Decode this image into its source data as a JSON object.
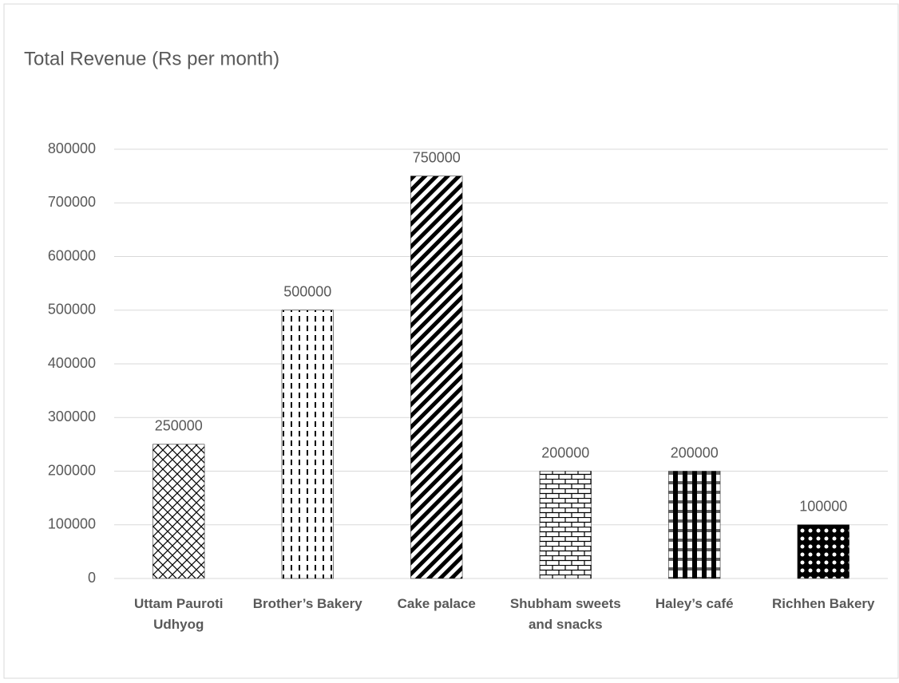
{
  "chart_data": {
    "type": "bar",
    "title": "Total Revenue (Rs per month)",
    "categories": [
      "Uttam Pauroti Udhyog",
      "Brother’s Bakery",
      "Cake palace",
      "Shubham sweets and snacks",
      "Haley’s café",
      "Richhen Bakery"
    ],
    "values": [
      250000,
      500000,
      750000,
      200000,
      200000,
      100000
    ],
    "color": "#000000",
    "ylim": [
      0,
      800000
    ],
    "yticks": [
      0,
      100000,
      200000,
      300000,
      400000,
      500000,
      600000,
      700000,
      800000
    ],
    "grid": true
  }
}
